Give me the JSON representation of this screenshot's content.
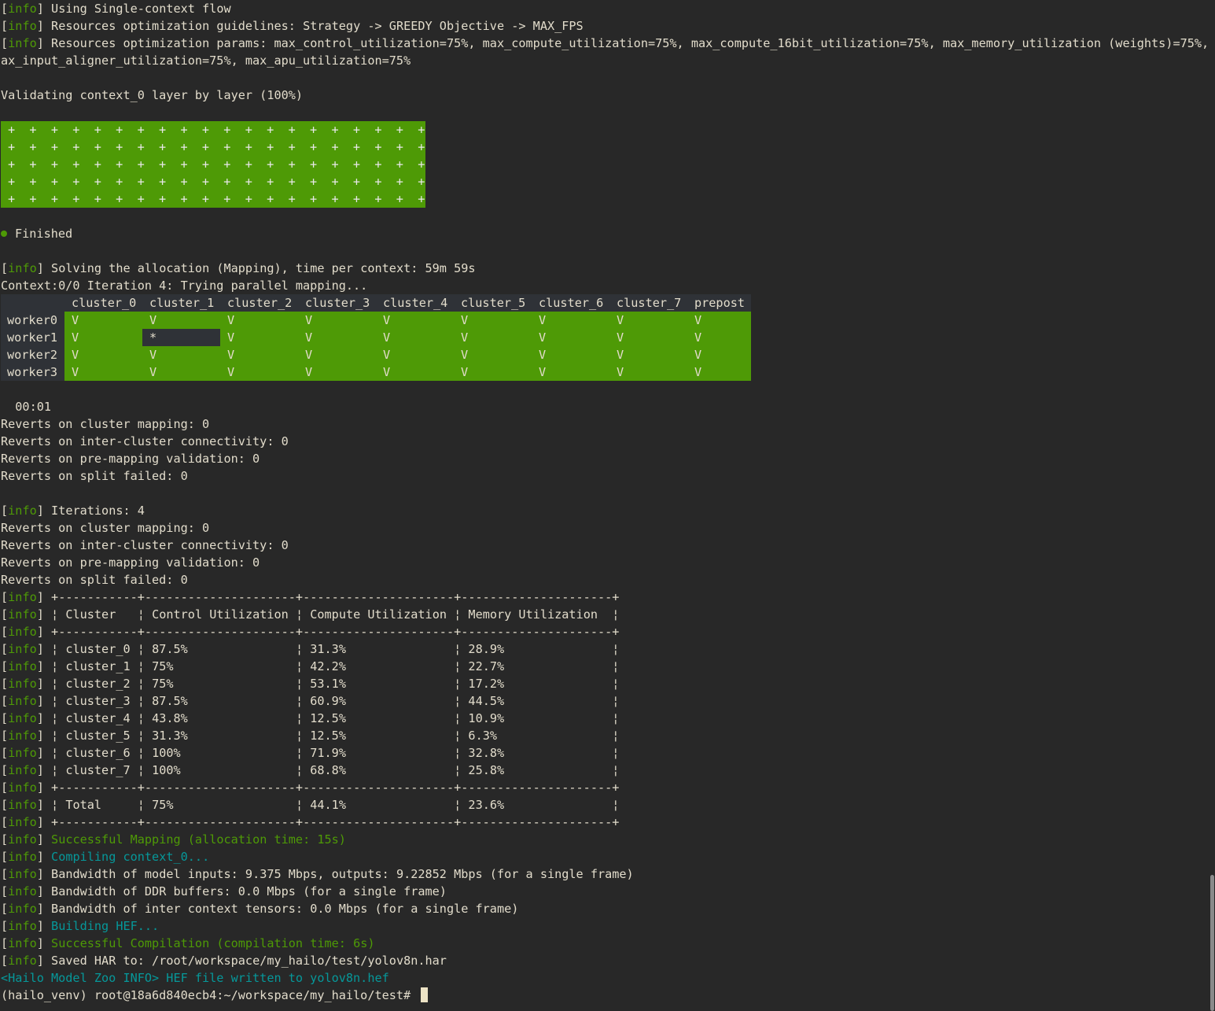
{
  "prefix": {
    "open": "[",
    "word": "info",
    "close": "]"
  },
  "colors": {
    "background": "#282828",
    "text": "#e2dccb",
    "green": "#4e9a06",
    "cyan": "#06989a"
  },
  "header_lines": [
    {
      "info": true,
      "text": "Using Single-context flow"
    },
    {
      "info": true,
      "text": "Resources optimization guidelines: Strategy -> GREEDY Objective -> MAX_FPS"
    },
    {
      "info": true,
      "text": "Resources optimization params: max_control_utilization=75%, max_compute_utilization=75%, max_compute_16bit_utilization=75%, max_memory_utilization (weights)=75%, m"
    },
    {
      "info": false,
      "text": "ax_input_aligner_utilization=75%, max_apu_utilization=75%"
    },
    {
      "info": false,
      "text": ""
    },
    {
      "info": false,
      "text": "Validating context_0 layer by layer (100%)"
    },
    {
      "info": false,
      "text": ""
    }
  ],
  "validation_grid": {
    "rows": 5,
    "cols": 20,
    "symbol": "+"
  },
  "finished_label": "Finished",
  "solving_lines": [
    {
      "info": false,
      "text": ""
    },
    {
      "info": true,
      "text": "Solving the allocation (Mapping), time per context: 59m 59s"
    },
    {
      "info": false,
      "text": "Context:0/0 Iteration 4: Trying parallel mapping..."
    }
  ],
  "worker_table": {
    "columns": [
      "cluster_0",
      "cluster_1",
      "cluster_2",
      "cluster_3",
      "cluster_4",
      "cluster_5",
      "cluster_6",
      "cluster_7",
      "prepost"
    ],
    "rows": [
      {
        "worker": "worker0",
        "cells": [
          "V",
          "V",
          "V",
          "V",
          "V",
          "V",
          "V",
          "V",
          "V"
        ]
      },
      {
        "worker": "worker1",
        "cells": [
          "V",
          "*",
          "V",
          "V",
          "V",
          "V",
          "V",
          "V",
          "V"
        ]
      },
      {
        "worker": "worker2",
        "cells": [
          "V",
          "V",
          "V",
          "V",
          "V",
          "V",
          "V",
          "V",
          "V"
        ]
      },
      {
        "worker": "worker3",
        "cells": [
          "V",
          "V",
          "V",
          "V",
          "V",
          "V",
          "V",
          "V",
          "V"
        ]
      }
    ]
  },
  "middle_lines": [
    {
      "info": false,
      "text": ""
    },
    {
      "info": false,
      "text": "  00:01"
    },
    {
      "info": false,
      "text": "Reverts on cluster mapping: 0"
    },
    {
      "info": false,
      "text": "Reverts on inter-cluster connectivity: 0"
    },
    {
      "info": false,
      "text": "Reverts on pre-mapping validation: 0"
    },
    {
      "info": false,
      "text": "Reverts on split failed: 0"
    },
    {
      "info": false,
      "text": ""
    },
    {
      "info": true,
      "text": "Iterations: 4"
    },
    {
      "info": false,
      "text": "Reverts on cluster mapping: 0"
    },
    {
      "info": false,
      "text": "Reverts on inter-cluster connectivity: 0"
    },
    {
      "info": false,
      "text": "Reverts on pre-mapping validation: 0"
    },
    {
      "info": false,
      "text": "Reverts on split failed: 0"
    }
  ],
  "util_table": {
    "border": "+-----------+---------------------+---------------------+---------------------+",
    "sep": "¦",
    "headers": [
      "Cluster",
      "Control Utilization",
      "Compute Utilization",
      "Memory Utilization"
    ],
    "rows": [
      [
        "cluster_0",
        "87.5%",
        "31.3%",
        "28.9%"
      ],
      [
        "cluster_1",
        "75%",
        "42.2%",
        "22.7%"
      ],
      [
        "cluster_2",
        "75%",
        "53.1%",
        "17.2%"
      ],
      [
        "cluster_3",
        "87.5%",
        "60.9%",
        "44.5%"
      ],
      [
        "cluster_4",
        "43.8%",
        "12.5%",
        "10.9%"
      ],
      [
        "cluster_5",
        "31.3%",
        "12.5%",
        "6.3%"
      ],
      [
        "cluster_6",
        "100%",
        "71.9%",
        "32.8%"
      ],
      [
        "cluster_7",
        "100%",
        "68.8%",
        "25.8%"
      ]
    ],
    "total": [
      "Total",
      "75%",
      "44.1%",
      "23.6%"
    ]
  },
  "tail_lines": [
    {
      "info": true,
      "text": "Successful Mapping (allocation time: 15s)",
      "color": "g"
    },
    {
      "info": true,
      "text": "Compiling context_0...",
      "color": "c"
    },
    {
      "info": true,
      "text": "Bandwidth of model inputs: 9.375 Mbps, outputs: 9.22852 Mbps (for a single frame)"
    },
    {
      "info": true,
      "text": "Bandwidth of DDR buffers: 0.0 Mbps (for a single frame)"
    },
    {
      "info": true,
      "text": "Bandwidth of inter context tensors: 0.0 Mbps (for a single frame)"
    },
    {
      "info": true,
      "text": "Building HEF...",
      "color": "c"
    },
    {
      "info": true,
      "text": "Successful Compilation (compilation time: 6s)",
      "color": "g"
    },
    {
      "info": true,
      "text": "Saved HAR to: /root/workspace/my_hailo/test/yolov8n.har"
    },
    {
      "info": false,
      "text": "<Hailo Model Zoo INFO> HEF file written to yolov8n.hef",
      "color": "c"
    }
  ],
  "prompt": "(hailo_venv) root@18a6d840ecb4:~/workspace/my_hailo/test# "
}
